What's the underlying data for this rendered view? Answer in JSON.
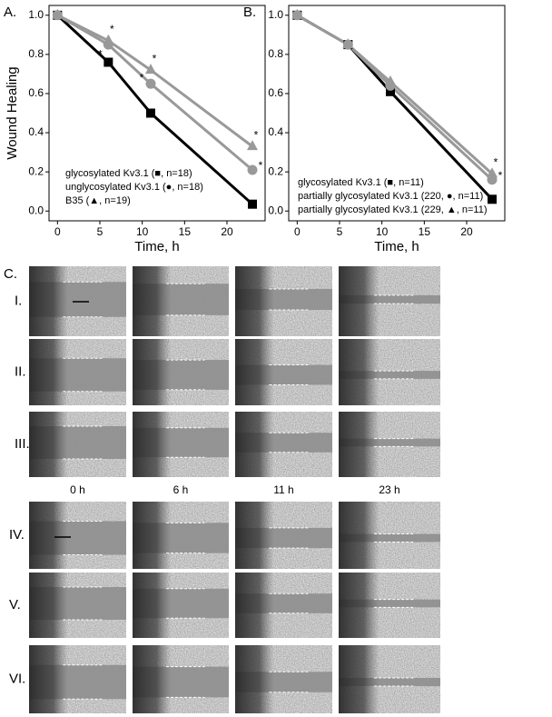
{
  "chart_data": [
    {
      "type": "line",
      "panel_label": "A.",
      "ylabel": "Wound Healing",
      "xlabel": "Time, h",
      "x": [
        0,
        6,
        11,
        23
      ],
      "series": [
        {
          "name": "glycosylated Kv3.1 (■, n=18)",
          "color": "#000000",
          "marker": "square",
          "values": [
            1.0,
            0.76,
            0.5,
            0.035
          ],
          "annotations": [
            null,
            "*",
            null,
            null
          ]
        },
        {
          "name": "unglycosylated Kv3.1 (●, n=18)",
          "color": "#999999",
          "marker": "circle",
          "values": [
            1.0,
            0.85,
            0.65,
            0.21
          ],
          "annotations": [
            null,
            null,
            "*",
            "*"
          ]
        },
        {
          "name": "B35 (▲, n=19)",
          "color": "#999999",
          "marker": "triangle",
          "values": [
            1.0,
            0.87,
            0.72,
            0.33
          ],
          "annotations": [
            null,
            "*",
            "*",
            "*"
          ]
        }
      ],
      "xlim": [
        -1,
        24.5
      ],
      "ylim": [
        -0.05,
        1.05
      ],
      "xticks": [
        0,
        5,
        10,
        15,
        20
      ],
      "yticks": [
        {
          "value": 0,
          "label": "0.0"
        },
        0.2,
        0.4,
        0.6,
        0.8,
        {
          "value": 1,
          "label": "1.0"
        }
      ],
      "legend": "lower left"
    },
    {
      "type": "line",
      "panel_label": "B.",
      "xlabel": "Time, h",
      "x": [
        0,
        6,
        11,
        23
      ],
      "series": [
        {
          "name": "glycosylated Kv3.1 (■, n=11)",
          "color": "#000000",
          "marker": "square",
          "values": [
            1.0,
            0.85,
            0.61,
            0.06
          ],
          "annotations": [
            null,
            null,
            null,
            null
          ]
        },
        {
          "name": "partially glycosylated Kv3.1 (220, ●, n=11)",
          "color": "#999999",
          "marker": "circle",
          "values": [
            1.0,
            0.85,
            0.64,
            0.16
          ],
          "annotations": [
            null,
            null,
            null,
            "*"
          ]
        },
        {
          "name": "partially glycosylated Kv3.1 (229, ▲, n=11)",
          "color": "#999999",
          "marker": "triangle",
          "values": [
            1.0,
            0.85,
            0.66,
            0.19
          ],
          "annotations": [
            null,
            null,
            null,
            "*"
          ]
        }
      ],
      "xlim": [
        -1,
        24.5
      ],
      "ylim": [
        -0.05,
        1.05
      ],
      "xticks": [
        0,
        5,
        10,
        15,
        20
      ],
      "yticks": [
        {
          "value": 0,
          "label": "0.0"
        },
        0.2,
        0.4,
        0.6,
        0.8,
        {
          "value": 1,
          "label": "1.0"
        }
      ],
      "legend": "lower left"
    }
  ],
  "panel_c": {
    "label": "C.",
    "rows": [
      "I.",
      "II.",
      "III.",
      "IV.",
      "V.",
      "VI."
    ],
    "times": [
      "0 h",
      "6 h",
      "11 h",
      "23 h"
    ]
  }
}
